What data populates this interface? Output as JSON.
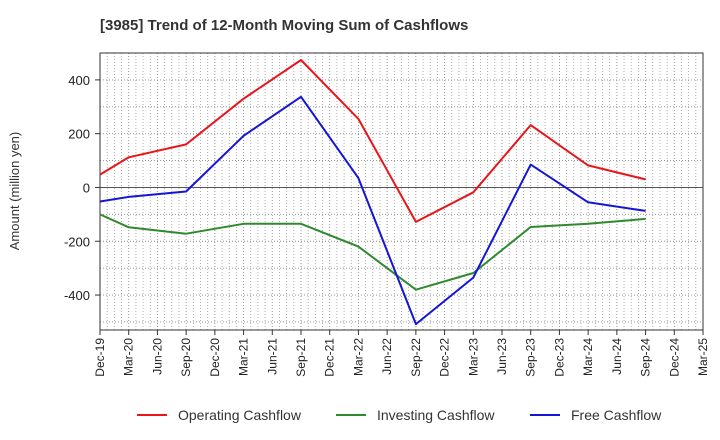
{
  "chart_data": {
    "type": "line",
    "title": "[3985]  Trend of 12-Month Moving Sum of Cashflows",
    "xlabel": "",
    "ylabel": "Amount (million yen)",
    "categories": [
      "Dec-19",
      "Mar-20",
      "Jun-20",
      "Sep-20",
      "Dec-20",
      "Mar-21",
      "Jun-21",
      "Sep-21",
      "Dec-21",
      "Mar-22",
      "Jun-22",
      "Sep-22",
      "Dec-22",
      "Mar-23",
      "Jun-23",
      "Sep-23",
      "Dec-23",
      "Mar-24",
      "Jun-24",
      "Sep-24",
      "Dec-24",
      "Mar-25"
    ],
    "ylim": [
      -530,
      500
    ],
    "yticks": [
      -400,
      -200,
      0,
      200,
      400
    ],
    "ytick_labels": [
      "-400",
      "-200",
      "0",
      "200",
      "400"
    ],
    "grid": true,
    "legend_position": "bottom",
    "series": [
      {
        "name": "Operating Cashflow",
        "color": "#e8161a",
        "points": [
          [
            "Dec-19",
            48
          ],
          [
            "Mar-20",
            112
          ],
          [
            "Sep-20",
            160
          ],
          [
            "Mar-21",
            330
          ],
          [
            "Sep-21",
            474
          ],
          [
            "Mar-22",
            255
          ],
          [
            "Sep-22",
            -128
          ],
          [
            "Mar-23",
            -18
          ],
          [
            "Sep-23",
            232
          ],
          [
            "Mar-24",
            82
          ],
          [
            "Sep-24",
            30
          ]
        ]
      },
      {
        "name": "Investing Cashflow",
        "color": "#2f8a2f",
        "points": [
          [
            "Dec-19",
            -100
          ],
          [
            "Mar-20",
            -148
          ],
          [
            "Sep-20",
            -172
          ],
          [
            "Mar-21",
            -135
          ],
          [
            "Sep-21",
            -135
          ],
          [
            "Mar-22",
            -220
          ],
          [
            "Sep-22",
            -380
          ],
          [
            "Mar-23",
            -318
          ],
          [
            "Sep-23",
            -147
          ],
          [
            "Mar-24",
            -135
          ],
          [
            "Sep-24",
            -117
          ]
        ]
      },
      {
        "name": "Free Cashflow",
        "color": "#1515d6",
        "points": [
          [
            "Dec-19",
            -52
          ],
          [
            "Mar-20",
            -35
          ],
          [
            "Sep-20",
            -15
          ],
          [
            "Mar-21",
            192
          ],
          [
            "Sep-21",
            337
          ],
          [
            "Mar-22",
            35
          ],
          [
            "Sep-22",
            -508
          ],
          [
            "Mar-23",
            -335
          ],
          [
            "Sep-23",
            85
          ],
          [
            "Mar-24",
            -55
          ],
          [
            "Sep-24",
            -87
          ]
        ]
      }
    ]
  }
}
